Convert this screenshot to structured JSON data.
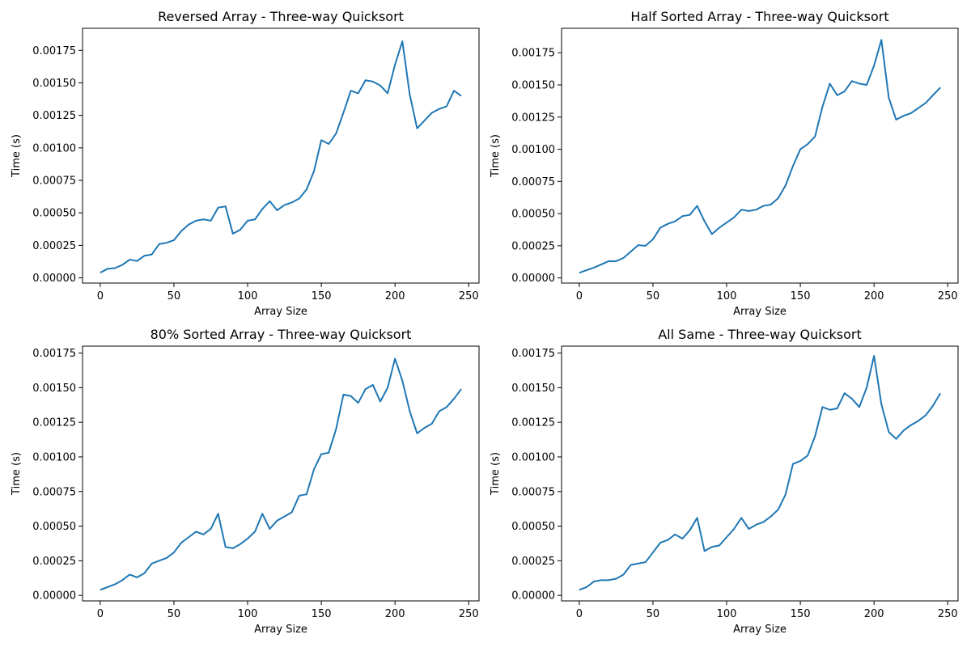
{
  "figure": {
    "line_color": "#1f77b4",
    "axis_color": "#000000",
    "background": "#ffffff"
  },
  "chart_data": [
    {
      "type": "line",
      "title": "Reversed Array - Three-way Quicksort",
      "xlabel": "Array Size",
      "ylabel": "Time (s)",
      "xlim": [
        -12,
        257
      ],
      "ylim": [
        -4e-05,
        0.00192
      ],
      "xticks": [
        0,
        50,
        100,
        150,
        200,
        250
      ],
      "xtick_labels": [
        "0",
        "50",
        "100",
        "150",
        "200",
        "250"
      ],
      "yticks": [
        0,
        0.00025,
        0.0005,
        0.00075,
        0.001,
        0.00125,
        0.0015,
        0.00175
      ],
      "ytick_labels": [
        "0.00000",
        "0.00025",
        "0.00050",
        "0.00075",
        "0.00100",
        "0.00125",
        "0.00150",
        "0.00175"
      ],
      "grid": false,
      "series": [
        {
          "x": [
            0,
            5,
            10,
            15,
            20,
            25,
            30,
            35,
            40,
            45,
            50,
            55,
            60,
            65,
            70,
            75,
            80,
            85,
            90,
            95,
            100,
            105,
            110,
            115,
            120,
            125,
            130,
            135,
            140,
            145,
            150,
            155,
            160,
            165,
            170,
            175,
            180,
            185,
            190,
            195,
            200,
            205,
            210,
            215,
            220,
            225,
            230,
            235,
            240,
            245
          ],
          "y": [
            4e-05,
            7e-05,
            7.5e-05,
            0.0001,
            0.00014,
            0.00013,
            0.00017,
            0.00018,
            0.00026,
            0.00027,
            0.00029,
            0.00036,
            0.00041,
            0.00044,
            0.00045,
            0.00044,
            0.00054,
            0.00055,
            0.00034,
            0.00037,
            0.00044,
            0.00045,
            0.00053,
            0.00059,
            0.00052,
            0.00056,
            0.00058,
            0.00061,
            0.00068,
            0.00082,
            0.00106,
            0.00103,
            0.00111,
            0.00127,
            0.00144,
            0.00142,
            0.00152,
            0.00151,
            0.00148,
            0.00142,
            0.00164,
            0.00182,
            0.00141,
            0.00115,
            0.00121,
            0.00127,
            0.0013,
            0.00132,
            0.00144,
            0.0014
          ]
        }
      ]
    },
    {
      "type": "line",
      "title": "Half Sorted Array - Three-way Quicksort",
      "xlabel": "Array Size",
      "ylabel": "Time (s)",
      "xlim": [
        -12,
        257
      ],
      "ylim": [
        -4e-05,
        0.00194
      ],
      "xticks": [
        0,
        50,
        100,
        150,
        200,
        250
      ],
      "xtick_labels": [
        "0",
        "50",
        "100",
        "150",
        "200",
        "250"
      ],
      "yticks": [
        0,
        0.00025,
        0.0005,
        0.00075,
        0.001,
        0.00125,
        0.0015,
        0.00175
      ],
      "ytick_labels": [
        "0.00000",
        "0.00025",
        "0.00050",
        "0.00075",
        "0.00100",
        "0.00125",
        "0.00150",
        "0.00175"
      ],
      "grid": false,
      "series": [
        {
          "x": [
            0,
            5,
            10,
            15,
            20,
            25,
            30,
            35,
            40,
            45,
            50,
            55,
            60,
            65,
            70,
            75,
            80,
            85,
            90,
            95,
            100,
            105,
            110,
            115,
            120,
            125,
            130,
            135,
            140,
            145,
            150,
            155,
            160,
            165,
            170,
            175,
            180,
            185,
            190,
            195,
            200,
            205,
            210,
            215,
            220,
            225,
            230,
            235,
            240,
            245
          ],
          "y": [
            4e-05,
            6e-05,
            8e-05,
            0.000105,
            0.00013,
            0.00013,
            0.000155,
            0.000205,
            0.000255,
            0.00025,
            0.0003,
            0.00039,
            0.00042,
            0.00044,
            0.00048,
            0.00049,
            0.00056,
            0.00044,
            0.00034,
            0.00039,
            0.00043,
            0.00047,
            0.00053,
            0.00052,
            0.00053,
            0.00056,
            0.00057,
            0.00062,
            0.00072,
            0.00087,
            0.001,
            0.00104,
            0.0011,
            0.00133,
            0.00151,
            0.00142,
            0.00145,
            0.00153,
            0.00151,
            0.0015,
            0.00165,
            0.00185,
            0.0014,
            0.00123,
            0.00126,
            0.00128,
            0.00132,
            0.00136,
            0.00142,
            0.00148
          ]
        }
      ]
    },
    {
      "type": "line",
      "title": "80% Sorted Array - Three-way Quicksort",
      "xlabel": "Array Size",
      "ylabel": "Time (s)",
      "xlim": [
        -12,
        257
      ],
      "ylim": [
        -4e-05,
        0.0018
      ],
      "xticks": [
        0,
        50,
        100,
        150,
        200,
        250
      ],
      "xtick_labels": [
        "0",
        "50",
        "100",
        "150",
        "200",
        "250"
      ],
      "yticks": [
        0,
        0.00025,
        0.0005,
        0.00075,
        0.001,
        0.00125,
        0.0015,
        0.00175
      ],
      "ytick_labels": [
        "0.00000",
        "0.00025",
        "0.00050",
        "0.00075",
        "0.00100",
        "0.00125",
        "0.00150",
        "0.00175"
      ],
      "grid": false,
      "series": [
        {
          "x": [
            0,
            5,
            10,
            15,
            20,
            25,
            30,
            35,
            40,
            45,
            50,
            55,
            60,
            65,
            70,
            75,
            80,
            85,
            90,
            95,
            100,
            105,
            110,
            115,
            120,
            125,
            130,
            135,
            140,
            145,
            150,
            155,
            160,
            165,
            170,
            175,
            180,
            185,
            190,
            195,
            200,
            205,
            210,
            215,
            220,
            225,
            230,
            235,
            240,
            245
          ],
          "y": [
            4e-05,
            6e-05,
            8e-05,
            0.00011,
            0.00015,
            0.00013,
            0.00016,
            0.00023,
            0.00025,
            0.00027,
            0.00031,
            0.00038,
            0.00042,
            0.00046,
            0.00044,
            0.00048,
            0.00059,
            0.00035,
            0.00034,
            0.00037,
            0.00041,
            0.00046,
            0.00059,
            0.00048,
            0.00054,
            0.00057,
            0.0006,
            0.00072,
            0.00073,
            0.00091,
            0.00102,
            0.00103,
            0.0012,
            0.00145,
            0.00144,
            0.00139,
            0.00149,
            0.00152,
            0.0014,
            0.0015,
            0.00171,
            0.00155,
            0.00133,
            0.00117,
            0.00121,
            0.00124,
            0.00133,
            0.00136,
            0.00142,
            0.00149
          ]
        }
      ]
    },
    {
      "type": "line",
      "title": "All Same - Three-way Quicksort",
      "xlabel": "Array Size",
      "ylabel": "Time (s)",
      "xlim": [
        -12,
        257
      ],
      "ylim": [
        -4e-05,
        0.0018
      ],
      "xticks": [
        0,
        50,
        100,
        150,
        200,
        250
      ],
      "xtick_labels": [
        "0",
        "50",
        "100",
        "150",
        "200",
        "250"
      ],
      "yticks": [
        0,
        0.00025,
        0.0005,
        0.00075,
        0.001,
        0.00125,
        0.0015,
        0.00175
      ],
      "ytick_labels": [
        "0.00000",
        "0.00025",
        "0.00050",
        "0.00075",
        "0.00100",
        "0.00125",
        "0.00150",
        "0.00175"
      ],
      "grid": false,
      "series": [
        {
          "x": [
            0,
            5,
            10,
            15,
            20,
            25,
            30,
            35,
            40,
            45,
            50,
            55,
            60,
            65,
            70,
            75,
            80,
            85,
            90,
            95,
            100,
            105,
            110,
            115,
            120,
            125,
            130,
            135,
            140,
            145,
            150,
            155,
            160,
            165,
            170,
            175,
            180,
            185,
            190,
            195,
            200,
            205,
            210,
            215,
            220,
            225,
            230,
            235,
            240,
            245
          ],
          "y": [
            4e-05,
            6e-05,
            0.0001,
            0.00011,
            0.00011,
            0.00012,
            0.00015,
            0.00022,
            0.00023,
            0.00024,
            0.00031,
            0.00038,
            0.0004,
            0.00044,
            0.00041,
            0.00047,
            0.00056,
            0.00032,
            0.00035,
            0.00036,
            0.00042,
            0.00048,
            0.00056,
            0.00048,
            0.00051,
            0.00053,
            0.00057,
            0.00062,
            0.00073,
            0.00095,
            0.00097,
            0.00101,
            0.00115,
            0.00136,
            0.00134,
            0.00135,
            0.00146,
            0.00142,
            0.00136,
            0.0015,
            0.00173,
            0.00138,
            0.00118,
            0.00113,
            0.00119,
            0.00123,
            0.00126,
            0.0013,
            0.00137,
            0.00146
          ]
        }
      ]
    }
  ]
}
